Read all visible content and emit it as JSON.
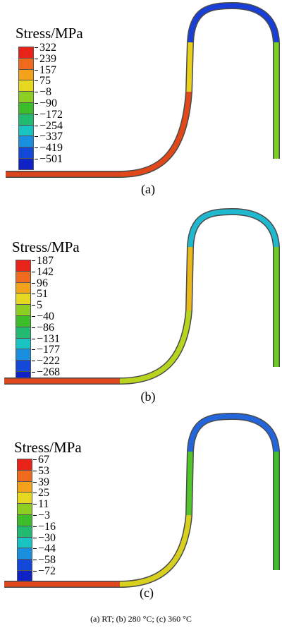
{
  "panels": [
    {
      "title": "Stress/MPa",
      "labels": [
        "322",
        "239",
        "157",
        "75",
        "−8",
        "−90",
        "−172",
        "−254",
        "−337",
        "−419",
        "−501"
      ],
      "caption": "(a)"
    },
    {
      "title": "Stress/MPa",
      "labels": [
        "187",
        "142",
        "96",
        "51",
        "5",
        "−40",
        "−86",
        "−131",
        "−177",
        "−222",
        "−268"
      ],
      "caption": "(b)"
    },
    {
      "title": "Stress/MPa",
      "labels": [
        "67",
        "53",
        "39",
        "25",
        "11",
        "−3",
        "−16",
        "−30",
        "−44",
        "−58",
        "−72"
      ],
      "caption": "(c)"
    }
  ],
  "colors": [
    "#e8231a",
    "#ef6a1c",
    "#f4a21c",
    "#e6d71f",
    "#8ccf22",
    "#3dbd2a",
    "#22b970",
    "#18c3c2",
    "#1a8fe0",
    "#1448d8",
    "#0f22c6"
  ],
  "footer": "(a) RT; (b) 280 °C; (c) 360 °C"
}
